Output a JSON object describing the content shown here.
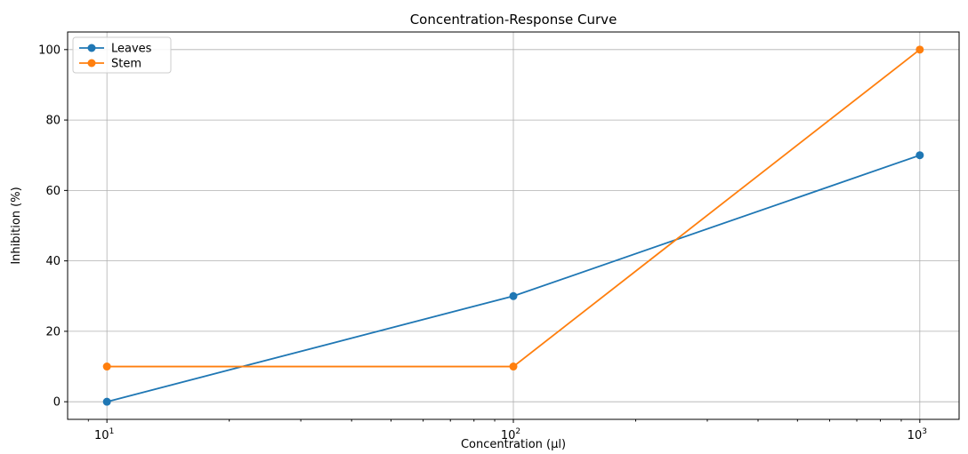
{
  "chart_data": {
    "type": "line",
    "title": "Concentration-Response Curve",
    "xlabel": "Concentration (µl)",
    "ylabel": "Inhibition (%)",
    "xscale": "log",
    "x": [
      10,
      100,
      1000
    ],
    "x_tick_labels": [
      {
        "base": "10",
        "exp": "1"
      },
      {
        "base": "10",
        "exp": "2"
      },
      {
        "base": "10",
        "exp": "3"
      }
    ],
    "y_ticks": [
      0,
      20,
      40,
      60,
      80,
      100
    ],
    "ylim": [
      -5,
      105
    ],
    "grid": true,
    "legend_position": "upper-left",
    "series": [
      {
        "name": "Leaves",
        "color": "#1f77b4",
        "values": [
          0,
          30,
          70
        ]
      },
      {
        "name": "Stem",
        "color": "#ff7f0e",
        "values": [
          10,
          10,
          100
        ]
      }
    ]
  }
}
